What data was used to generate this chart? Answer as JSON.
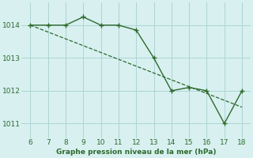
{
  "line1_x": [
    6,
    7,
    8,
    9,
    10,
    11,
    12,
    13,
    14,
    15,
    16,
    17,
    18
  ],
  "line1_y": [
    1014.0,
    1014.0,
    1014.0,
    1014.25,
    1014.0,
    1014.0,
    1013.85,
    1013.0,
    1012.0,
    1012.1,
    1012.0,
    1011.0,
    1012.0
  ],
  "line2_x": [
    6,
    18
  ],
  "line2_y": [
    1014.0,
    1011.5
  ],
  "line_color": "#2d6a2d",
  "bg_color": "#d8f0f0",
  "grid_color": "#aed4d4",
  "xlabel": "Graphe pression niveau de la mer (hPa)",
  "xlabel_color": "#2d6a2d",
  "ylabel_ticks": [
    1011,
    1012,
    1013,
    1014
  ],
  "xlim": [
    5.5,
    18.5
  ],
  "ylim": [
    1010.55,
    1014.7
  ],
  "xticks": [
    6,
    7,
    8,
    9,
    10,
    11,
    12,
    13,
    14,
    15,
    16,
    17,
    18
  ]
}
